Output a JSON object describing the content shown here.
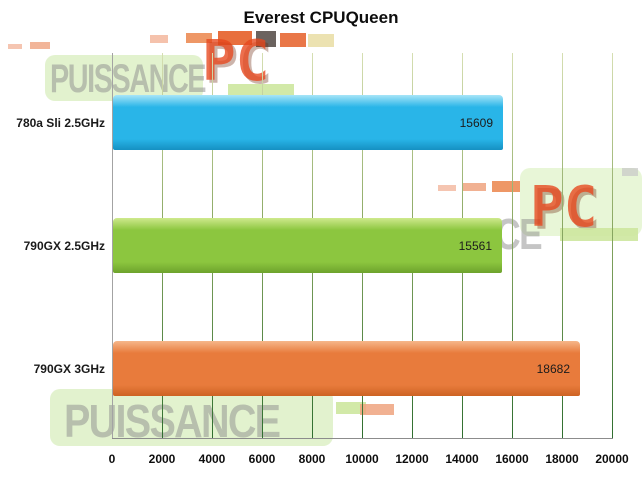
{
  "title": "Everest CPUQueen",
  "watermark": {
    "brand": "PUISSANCE",
    "suffix": "PC"
  },
  "chart_data": {
    "type": "bar",
    "orientation": "horizontal",
    "title": "Everest CPUQueen",
    "categories": [
      "780a Sli 2.5GHz",
      "790GX 2.5GHz",
      "790GX 3GHz"
    ],
    "values": [
      15609,
      15561,
      18682
    ],
    "value_labels": [
      "15609",
      "15561",
      "18682"
    ],
    "xlim": [
      0,
      20000
    ],
    "x_ticks": [
      0,
      2000,
      4000,
      6000,
      8000,
      10000,
      12000,
      14000,
      16000,
      18000,
      20000
    ],
    "x_tick_labels": [
      "0",
      "2000",
      "4000",
      "6000",
      "8000",
      "10000",
      "12000",
      "14000",
      "16000",
      "18000",
      "20000"
    ],
    "grid": true,
    "legend": null,
    "xlabel": "",
    "ylabel": "",
    "bar_styles": [
      {
        "light": "#a7e5f8",
        "main": "#29b5e8",
        "dark": "#1590c2"
      },
      {
        "light": "#cfe98d",
        "main": "#8cc63f",
        "dark": "#6da22c"
      },
      {
        "light": "#f6b78a",
        "main": "#e87b3c",
        "dark": "#cd6323"
      }
    ],
    "gridline_color": "#4e7e3a",
    "value_label_color": "#1c1c1c"
  }
}
